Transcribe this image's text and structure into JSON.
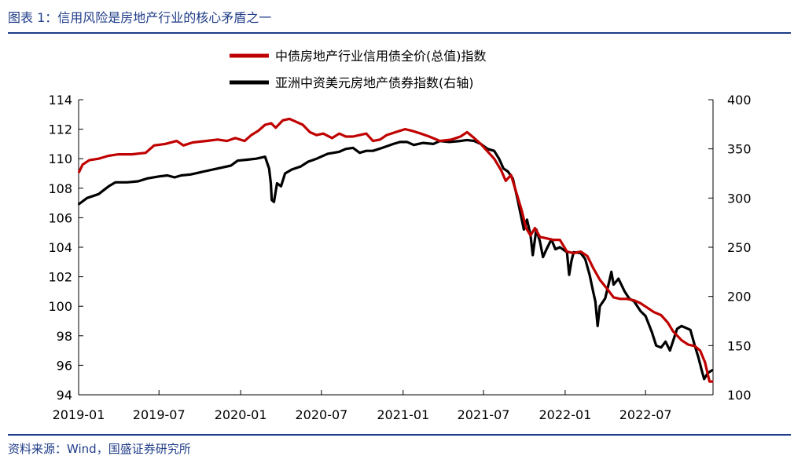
{
  "figure_title": "图表 1：信用风险是房地产行业的核心矛盾之一",
  "source_note": "资料来源：Wind，国盛证券研究所",
  "chart_data": {
    "type": "line",
    "xlabel": "",
    "ylabel_left": "",
    "ylabel_right": "",
    "ylim_left": [
      94,
      114
    ],
    "ylim_right": [
      100,
      400
    ],
    "yticks_left": [
      "114",
      "112",
      "110",
      "108",
      "106",
      "104",
      "102",
      "100",
      "98",
      "96",
      "94"
    ],
    "yticks_right": [
      "400",
      "350",
      "300",
      "250",
      "200",
      "150",
      "100"
    ],
    "xticks": [
      "2019-01",
      "2019-07",
      "2020-01",
      "2020-07",
      "2021-01",
      "2021-07",
      "2022-01",
      "2022-07"
    ],
    "grid": false,
    "legend_position": "top-center",
    "series": [
      {
        "name": "中债房地产行业信用债全价(总值)指数",
        "axis": "left",
        "color": "#c00000",
        "points": [
          [
            "2019-01-02",
            109.1
          ],
          [
            "2019-01-10",
            109.6
          ],
          [
            "2019-01-25",
            109.9
          ],
          [
            "2019-02-15",
            110.0
          ],
          [
            "2019-03-10",
            110.2
          ],
          [
            "2019-04-01",
            110.3
          ],
          [
            "2019-05-01",
            110.3
          ],
          [
            "2019-06-01",
            110.4
          ],
          [
            "2019-06-20",
            110.9
          ],
          [
            "2019-07-15",
            111.0
          ],
          [
            "2019-08-10",
            111.2
          ],
          [
            "2019-08-25",
            110.9
          ],
          [
            "2019-09-15",
            111.1
          ],
          [
            "2019-10-15",
            111.2
          ],
          [
            "2019-11-10",
            111.3
          ],
          [
            "2019-12-01",
            111.2
          ],
          [
            "2019-12-20",
            111.4
          ],
          [
            "2020-01-10",
            111.2
          ],
          [
            "2020-01-25",
            111.6
          ],
          [
            "2020-02-10",
            111.9
          ],
          [
            "2020-02-25",
            112.3
          ],
          [
            "2020-03-10",
            112.4
          ],
          [
            "2020-03-20",
            112.1
          ],
          [
            "2020-04-05",
            112.6
          ],
          [
            "2020-04-20",
            112.7
          ],
          [
            "2020-05-05",
            112.5
          ],
          [
            "2020-05-20",
            112.3
          ],
          [
            "2020-06-05",
            111.8
          ],
          [
            "2020-06-20",
            111.6
          ],
          [
            "2020-07-05",
            111.7
          ],
          [
            "2020-07-25",
            111.4
          ],
          [
            "2020-08-10",
            111.7
          ],
          [
            "2020-08-25",
            111.5
          ],
          [
            "2020-09-10",
            111.5
          ],
          [
            "2020-09-25",
            111.6
          ],
          [
            "2020-10-10",
            111.7
          ],
          [
            "2020-10-25",
            111.2
          ],
          [
            "2020-11-10",
            111.3
          ],
          [
            "2020-11-25",
            111.6
          ],
          [
            "2020-12-15",
            111.8
          ],
          [
            "2021-01-05",
            112.0
          ],
          [
            "2021-01-20",
            111.9
          ],
          [
            "2021-02-10",
            111.7
          ],
          [
            "2021-03-01",
            111.5
          ],
          [
            "2021-03-25",
            111.2
          ],
          [
            "2021-04-20",
            111.3
          ],
          [
            "2021-05-10",
            111.5
          ],
          [
            "2021-05-25",
            111.8
          ],
          [
            "2021-06-10",
            111.4
          ],
          [
            "2021-06-25",
            111.0
          ],
          [
            "2021-07-10",
            110.5
          ],
          [
            "2021-07-25",
            110.0
          ],
          [
            "2021-08-10",
            109.2
          ],
          [
            "2021-08-20",
            108.5
          ],
          [
            "2021-09-01",
            108.9
          ],
          [
            "2021-09-15",
            107.5
          ],
          [
            "2021-09-25",
            106.5
          ],
          [
            "2021-10-05",
            105.3
          ],
          [
            "2021-10-15",
            104.8
          ],
          [
            "2021-10-25",
            105.3
          ],
          [
            "2021-11-05",
            104.7
          ],
          [
            "2021-11-20",
            104.6
          ],
          [
            "2021-12-05",
            104.5
          ],
          [
            "2021-12-20",
            104.5
          ],
          [
            "2022-01-05",
            103.7
          ],
          [
            "2022-01-20",
            103.6
          ],
          [
            "2022-02-05",
            103.7
          ],
          [
            "2022-02-20",
            103.4
          ],
          [
            "2022-03-05",
            102.6
          ],
          [
            "2022-03-20",
            101.8
          ],
          [
            "2022-04-05",
            101.2
          ],
          [
            "2022-04-20",
            100.6
          ],
          [
            "2022-05-05",
            100.5
          ],
          [
            "2022-05-20",
            100.5
          ],
          [
            "2022-06-05",
            100.4
          ],
          [
            "2022-06-20",
            100.2
          ],
          [
            "2022-07-05",
            99.9
          ],
          [
            "2022-07-20",
            99.6
          ],
          [
            "2022-08-05",
            99.4
          ],
          [
            "2022-08-20",
            98.9
          ],
          [
            "2022-09-01",
            98.3
          ],
          [
            "2022-09-20",
            97.7
          ],
          [
            "2022-10-05",
            97.4
          ],
          [
            "2022-10-20",
            97.3
          ],
          [
            "2022-11-01",
            97.0
          ],
          [
            "2022-11-12",
            96.2
          ],
          [
            "2022-11-22",
            94.9
          ],
          [
            "2022-11-28",
            94.9
          ]
        ]
      },
      {
        "name": "亚洲中资美元房地产债券指数(右轴)",
        "axis": "right",
        "color": "#000000",
        "points": [
          [
            "2019-01-02",
            294
          ],
          [
            "2019-01-20",
            300
          ],
          [
            "2019-02-15",
            304
          ],
          [
            "2019-03-10",
            312
          ],
          [
            "2019-03-25",
            316
          ],
          [
            "2019-04-20",
            316
          ],
          [
            "2019-05-15",
            317
          ],
          [
            "2019-06-05",
            320
          ],
          [
            "2019-07-01",
            322
          ],
          [
            "2019-07-20",
            323
          ],
          [
            "2019-08-05",
            321
          ],
          [
            "2019-08-20",
            323
          ],
          [
            "2019-09-10",
            324
          ],
          [
            "2019-10-10",
            327
          ],
          [
            "2019-11-10",
            330
          ],
          [
            "2019-12-10",
            333
          ],
          [
            "2019-12-25",
            338
          ],
          [
            "2020-01-15",
            339
          ],
          [
            "2020-02-05",
            340
          ],
          [
            "2020-02-25",
            342
          ],
          [
            "2020-03-05",
            330
          ],
          [
            "2020-03-09",
            315
          ],
          [
            "2020-03-11",
            298
          ],
          [
            "2020-03-16",
            296
          ],
          [
            "2020-03-23",
            315
          ],
          [
            "2020-04-01",
            312
          ],
          [
            "2020-04-10",
            325
          ],
          [
            "2020-04-25",
            329
          ],
          [
            "2020-05-15",
            332
          ],
          [
            "2020-06-01",
            337
          ],
          [
            "2020-06-20",
            340
          ],
          [
            "2020-07-15",
            345
          ],
          [
            "2020-08-10",
            347
          ],
          [
            "2020-08-25",
            350
          ],
          [
            "2020-09-10",
            351
          ],
          [
            "2020-09-25",
            346
          ],
          [
            "2020-10-10",
            348
          ],
          [
            "2020-10-25",
            348
          ],
          [
            "2020-11-15",
            351
          ],
          [
            "2020-12-10",
            355
          ],
          [
            "2020-12-25",
            357
          ],
          [
            "2021-01-10",
            357
          ],
          [
            "2021-01-25",
            354
          ],
          [
            "2021-02-15",
            356
          ],
          [
            "2021-03-10",
            355
          ],
          [
            "2021-03-25",
            358
          ],
          [
            "2021-04-15",
            357
          ],
          [
            "2021-05-10",
            358
          ],
          [
            "2021-05-25",
            359
          ],
          [
            "2021-06-10",
            358
          ],
          [
            "2021-06-25",
            355
          ],
          [
            "2021-07-10",
            350
          ],
          [
            "2021-07-25",
            348
          ],
          [
            "2021-08-05",
            340
          ],
          [
            "2021-08-15",
            330
          ],
          [
            "2021-08-25",
            327
          ],
          [
            "2021-09-05",
            320
          ],
          [
            "2021-09-15",
            300
          ],
          [
            "2021-09-22",
            285
          ],
          [
            "2021-09-30",
            268
          ],
          [
            "2021-10-07",
            278
          ],
          [
            "2021-10-15",
            262
          ],
          [
            "2021-10-20",
            242
          ],
          [
            "2021-10-28",
            268
          ],
          [
            "2021-11-05",
            256
          ],
          [
            "2021-11-12",
            240
          ],
          [
            "2021-11-20",
            248
          ],
          [
            "2021-12-01",
            258
          ],
          [
            "2021-12-10",
            248
          ],
          [
            "2021-12-20",
            250
          ],
          [
            "2022-01-05",
            245
          ],
          [
            "2022-01-10",
            222
          ],
          [
            "2022-01-15",
            236
          ],
          [
            "2022-01-20",
            245
          ],
          [
            "2022-02-05",
            244
          ],
          [
            "2022-02-15",
            238
          ],
          [
            "2022-02-25",
            222
          ],
          [
            "2022-03-05",
            205
          ],
          [
            "2022-03-10",
            195
          ],
          [
            "2022-03-15",
            170
          ],
          [
            "2022-03-20",
            190
          ],
          [
            "2022-04-01",
            198
          ],
          [
            "2022-04-10",
            215
          ],
          [
            "2022-04-15",
            225
          ],
          [
            "2022-04-20",
            212
          ],
          [
            "2022-05-01",
            218
          ],
          [
            "2022-05-15",
            205
          ],
          [
            "2022-05-25",
            198
          ],
          [
            "2022-06-05",
            195
          ],
          [
            "2022-06-20",
            185
          ],
          [
            "2022-07-01",
            180
          ],
          [
            "2022-07-15",
            164
          ],
          [
            "2022-07-25",
            150
          ],
          [
            "2022-08-05",
            148
          ],
          [
            "2022-08-15",
            154
          ],
          [
            "2022-08-25",
            145
          ],
          [
            "2022-09-05",
            160
          ],
          [
            "2022-09-10",
            167
          ],
          [
            "2022-09-20",
            170
          ],
          [
            "2022-09-30",
            168
          ],
          [
            "2022-10-10",
            166
          ],
          [
            "2022-10-20",
            150
          ],
          [
            "2022-10-28",
            138
          ],
          [
            "2022-11-05",
            124
          ],
          [
            "2022-11-10",
            116
          ],
          [
            "2022-11-18",
            122
          ],
          [
            "2022-11-28",
            125
          ]
        ]
      }
    ]
  }
}
